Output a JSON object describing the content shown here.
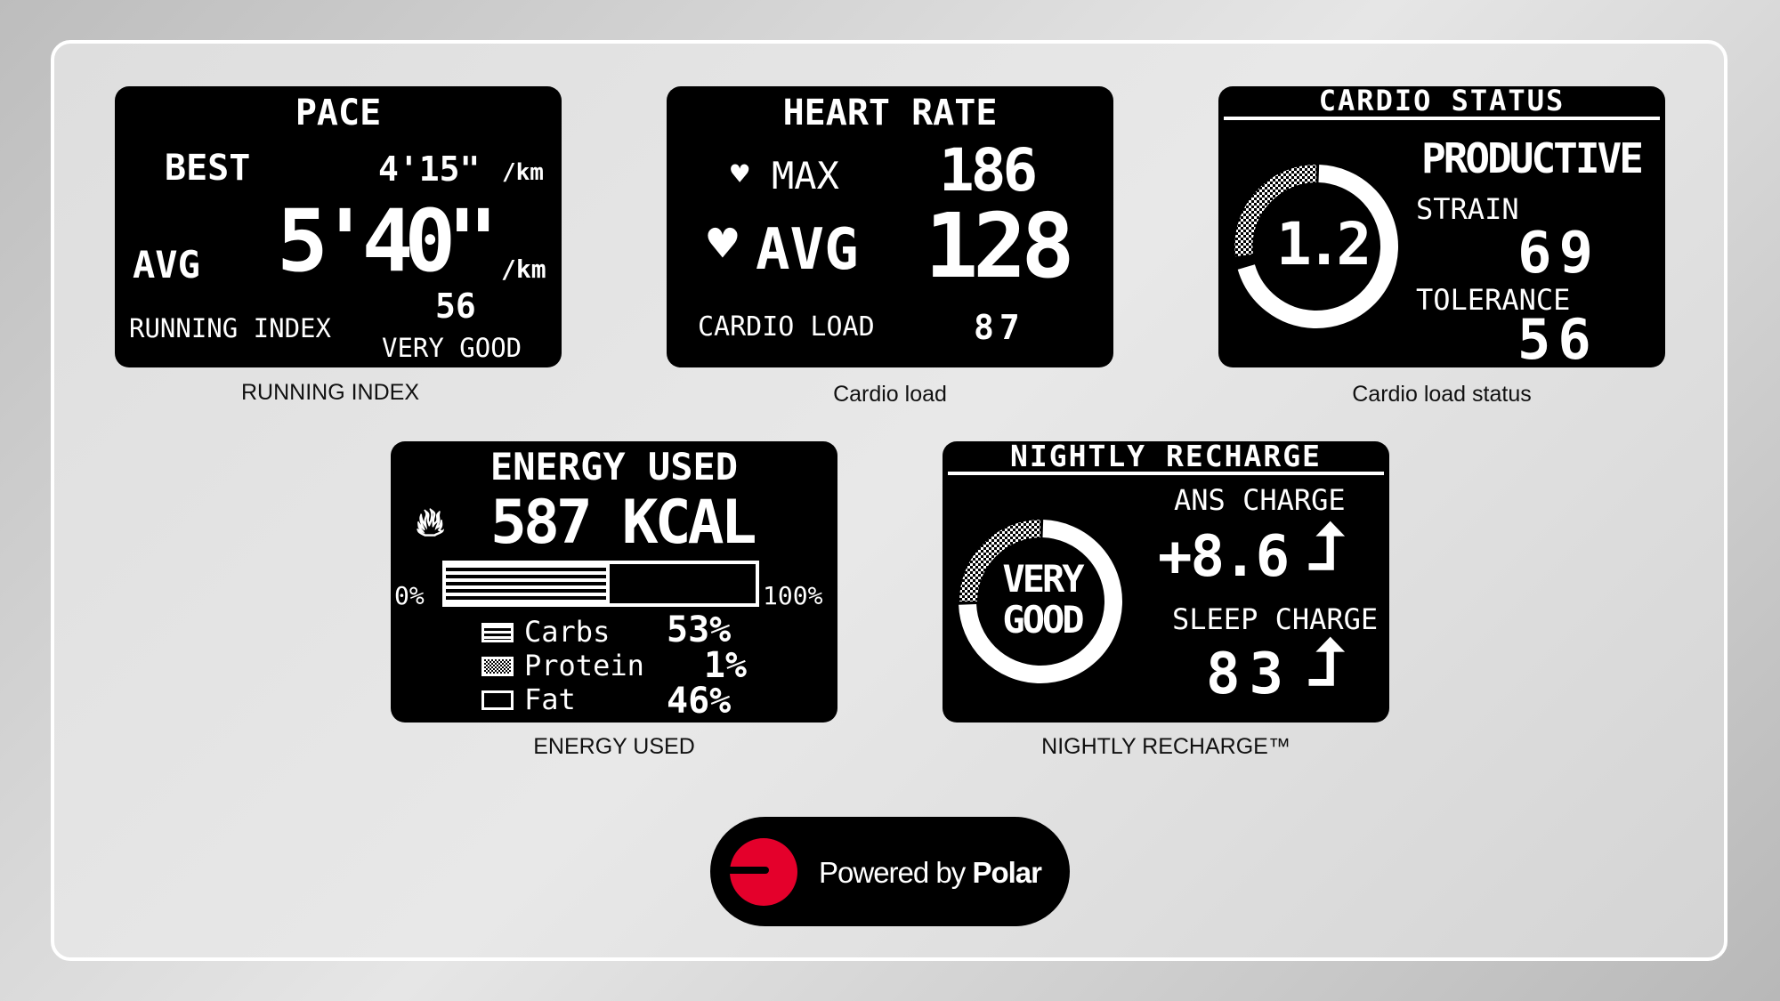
{
  "panels": {
    "pace": {
      "title": "PACE",
      "best_label": "BEST",
      "best_value": "4'15\"",
      "best_unit": "/km",
      "avg_label": "AVG",
      "avg_value": "5'40\"",
      "avg_unit": "/km",
      "ri_label": "RUNNING INDEX",
      "ri_value": "56",
      "ri_rating": "VERY GOOD",
      "caption": "RUNNING INDEX"
    },
    "heart_rate": {
      "title": "HEART RATE",
      "max_label": "MAX",
      "max_value": "186",
      "avg_label": "AVG",
      "avg_value": "128",
      "load_label": "CARDIO LOAD",
      "load_value": "87",
      "caption": "Cardio load"
    },
    "cardio_status": {
      "title": "CARDIO STATUS",
      "status": "PRODUCTIVE",
      "ratio": "1.2",
      "strain_label": "STRAIN",
      "strain_value": "69",
      "tolerance_label": "TOLERANCE",
      "tolerance_value": "56",
      "caption": "Cardio load status"
    },
    "energy": {
      "title": "ENERGY USED",
      "value": "587 KCAL",
      "min_label": "0%",
      "max_label": "100%",
      "carbs_fraction": 0.53,
      "legend": [
        {
          "label": "Carbs",
          "value": "53%"
        },
        {
          "label": "Protein",
          "value": "1%"
        },
        {
          "label": "Fat",
          "value": "46%"
        }
      ],
      "caption": "ENERGY USED"
    },
    "recharge": {
      "title": "NIGHTLY RECHARGE",
      "status_line1": "VERY",
      "status_line2": "GOOD",
      "ans_label": "ANS CHARGE",
      "ans_value": "+8.6",
      "sleep_label": "SLEEP CHARGE",
      "sleep_value": "83",
      "caption": "NIGHTLY RECHARGE™"
    }
  },
  "footer": {
    "powered_by": "Powered by",
    "brand": "Polar",
    "brand_color": "#e4002b"
  }
}
